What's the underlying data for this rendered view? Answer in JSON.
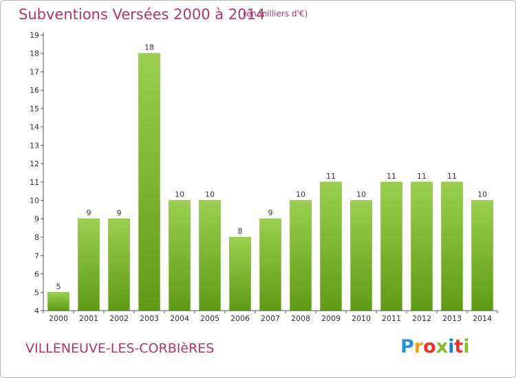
{
  "title": "Subventions Versées 2000 à 2014",
  "subtitle": "(en milliers d'€)",
  "commune": "VILLENEUVE-LES-CORBIèRES",
  "logo": {
    "letters": [
      "P",
      "r",
      "o",
      "x",
      "i",
      "t",
      "i"
    ],
    "colors": [
      "#2d8fd1",
      "#f3a21b",
      "#e8332e",
      "#7fbf2e",
      "#1f7fcf",
      "#e8332e",
      "#7fbf2e"
    ]
  },
  "colors": {
    "bar_light": "#9ccf4f",
    "bar_dark": "#5f9a16",
    "axis": "#555555",
    "text": "#a8386e"
  },
  "chart_data": {
    "type": "bar",
    "title": "Subventions Versées 2000 à 2014",
    "subtitle": "(en milliers d'€)",
    "xlabel": "",
    "ylabel": "",
    "categories": [
      "2000",
      "2001",
      "2002",
      "2003",
      "2004",
      "2005",
      "2006",
      "2007",
      "2008",
      "2009",
      "2010",
      "2011",
      "2012",
      "2013",
      "2014"
    ],
    "values": [
      5,
      9,
      9,
      18,
      10,
      10,
      8,
      9,
      10,
      11,
      10,
      11,
      11,
      11,
      10
    ],
    "ylim": [
      4,
      19
    ],
    "yticks": [
      4,
      5,
      6,
      7,
      8,
      9,
      10,
      11,
      12,
      13,
      14,
      15,
      16,
      17,
      18,
      19
    ],
    "grid": false,
    "legend": "none"
  }
}
